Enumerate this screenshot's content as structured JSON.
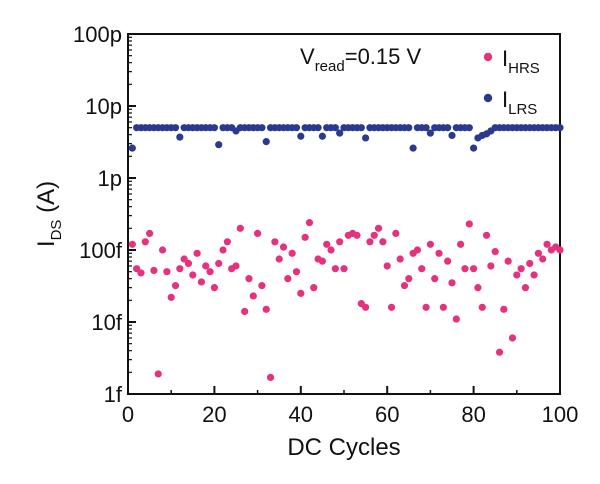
{
  "chart_data": {
    "type": "scatter",
    "xlabel": "DC Cycles",
    "ylabel_main": "I",
    "ylabel_sub": "DS",
    "ylabel_unit": " (A)",
    "xlim": [
      0,
      100
    ],
    "ylim": [
      1e-15,
      1e-10
    ],
    "yscale": "log",
    "grid": false,
    "legend_position": "top-right",
    "x_ticks": [
      0,
      20,
      40,
      60,
      80,
      100
    ],
    "y_ticks": [
      {
        "value": 1e-15,
        "label": "1f"
      },
      {
        "value": 1e-14,
        "label": "10f"
      },
      {
        "value": 1e-13,
        "label": "100f"
      },
      {
        "value": 1e-12,
        "label": "1p"
      },
      {
        "value": 1e-11,
        "label": "10p"
      },
      {
        "value": 1e-10,
        "label": "100p"
      }
    ],
    "annotation": {
      "prefix": "V",
      "sub": "read",
      "suffix": "=0.15 V"
    },
    "series": [
      {
        "name_main": "I",
        "name_sub": "HRS",
        "color": "#e5317e",
        "points": [
          [
            1,
            1.2e-13
          ],
          [
            2,
            5.5e-14
          ],
          [
            3,
            4.8e-14
          ],
          [
            4,
            1.3e-13
          ],
          [
            5,
            1.7e-13
          ],
          [
            6,
            5.2e-14
          ],
          [
            7,
            1.9e-15
          ],
          [
            8,
            1e-13
          ],
          [
            9,
            5e-14
          ],
          [
            10,
            2.2e-14
          ],
          [
            11,
            3.2e-14
          ],
          [
            12,
            5.5e-14
          ],
          [
            13,
            7.5e-14
          ],
          [
            14,
            6.5e-14
          ],
          [
            15,
            4.5e-14
          ],
          [
            16,
            9e-14
          ],
          [
            17,
            3.6e-14
          ],
          [
            18,
            6e-14
          ],
          [
            19,
            5e-14
          ],
          [
            20,
            3e-14
          ],
          [
            21,
            6.5e-14
          ],
          [
            22,
            1e-13
          ],
          [
            23,
            1.3e-13
          ],
          [
            24,
            5.5e-14
          ],
          [
            25,
            6e-14
          ],
          [
            26,
            2e-13
          ],
          [
            27,
            1.4e-14
          ],
          [
            28,
            4e-14
          ],
          [
            29,
            2.3e-14
          ],
          [
            30,
            1.7e-13
          ],
          [
            31,
            3.2e-14
          ],
          [
            32,
            1.5e-14
          ],
          [
            33,
            1.7e-15
          ],
          [
            34,
            1.3e-13
          ],
          [
            35,
            7.5e-14
          ],
          [
            36,
            1.1e-13
          ],
          [
            37,
            4e-14
          ],
          [
            38,
            9e-14
          ],
          [
            39,
            5e-14
          ],
          [
            40,
            2.5e-14
          ],
          [
            41,
            1.5e-13
          ],
          [
            42,
            2.4e-13
          ],
          [
            43,
            3e-14
          ],
          [
            44,
            7.5e-14
          ],
          [
            45,
            7e-14
          ],
          [
            46,
            1.2e-13
          ],
          [
            47,
            1e-13
          ],
          [
            48,
            5.5e-14
          ],
          [
            49,
            1.3e-13
          ],
          [
            50,
            5.5e-14
          ],
          [
            51,
            1.6e-13
          ],
          [
            52,
            1.7e-13
          ],
          [
            53,
            1.6e-13
          ],
          [
            54,
            1.8e-14
          ],
          [
            55,
            1.6e-14
          ],
          [
            56,
            1.3e-13
          ],
          [
            57,
            1.6e-13
          ],
          [
            58,
            2e-13
          ],
          [
            59,
            1.3e-13
          ],
          [
            60,
            6e-14
          ],
          [
            61,
            1.6e-14
          ],
          [
            62,
            1.7e-13
          ],
          [
            63,
            7.5e-14
          ],
          [
            64,
            3.2e-14
          ],
          [
            65,
            4e-14
          ],
          [
            66,
            9e-14
          ],
          [
            67,
            1e-13
          ],
          [
            68,
            5.5e-14
          ],
          [
            69,
            1.6e-14
          ],
          [
            70,
            1.2e-13
          ],
          [
            71,
            4e-14
          ],
          [
            72,
            9e-14
          ],
          [
            73,
            1.6e-14
          ],
          [
            74,
            7e-14
          ],
          [
            75,
            3.5e-14
          ],
          [
            76,
            1.1e-14
          ],
          [
            77,
            1.2e-13
          ],
          [
            78,
            5.5e-14
          ],
          [
            79,
            2.3e-13
          ],
          [
            80,
            5.5e-14
          ],
          [
            81,
            3e-14
          ],
          [
            82,
            1.6e-14
          ],
          [
            83,
            1.6e-13
          ],
          [
            84,
            6e-14
          ],
          [
            85,
            9.5e-14
          ],
          [
            86,
            3.8e-15
          ],
          [
            87,
            1.5e-14
          ],
          [
            88,
            7e-14
          ],
          [
            89,
            6e-15
          ],
          [
            90,
            4.5e-14
          ],
          [
            91,
            5.5e-14
          ],
          [
            92,
            3e-14
          ],
          [
            93,
            6.5e-14
          ],
          [
            94,
            4.5e-14
          ],
          [
            95,
            9e-14
          ],
          [
            96,
            7.5e-14
          ],
          [
            97,
            1.2e-13
          ],
          [
            98,
            1e-13
          ],
          [
            99,
            1.1e-13
          ],
          [
            100,
            1e-13
          ]
        ]
      },
      {
        "name_main": "I",
        "name_sub": "LRS",
        "color": "#2b3a8f",
        "points": [
          [
            1,
            2.6e-12
          ],
          [
            2,
            5e-12
          ],
          [
            3,
            5e-12
          ],
          [
            4,
            5e-12
          ],
          [
            5,
            5e-12
          ],
          [
            6,
            5e-12
          ],
          [
            7,
            5e-12
          ],
          [
            8,
            5e-12
          ],
          [
            9,
            5e-12
          ],
          [
            10,
            5e-12
          ],
          [
            11,
            5e-12
          ],
          [
            12,
            3.7e-12
          ],
          [
            13,
            5e-12
          ],
          [
            14,
            5e-12
          ],
          [
            15,
            5e-12
          ],
          [
            16,
            5e-12
          ],
          [
            17,
            5e-12
          ],
          [
            18,
            5e-12
          ],
          [
            19,
            5e-12
          ],
          [
            20,
            5e-12
          ],
          [
            21,
            2.9e-12
          ],
          [
            22,
            5e-12
          ],
          [
            23,
            5e-12
          ],
          [
            24,
            5e-12
          ],
          [
            25,
            4.5e-12
          ],
          [
            26,
            5e-12
          ],
          [
            27,
            5e-12
          ],
          [
            28,
            5e-12
          ],
          [
            29,
            5e-12
          ],
          [
            30,
            5e-12
          ],
          [
            31,
            5e-12
          ],
          [
            32,
            3.2e-12
          ],
          [
            33,
            5e-12
          ],
          [
            34,
            5e-12
          ],
          [
            35,
            5e-12
          ],
          [
            36,
            5e-12
          ],
          [
            37,
            5e-12
          ],
          [
            38,
            5e-12
          ],
          [
            39,
            5e-12
          ],
          [
            40,
            3.8e-12
          ],
          [
            41,
            5e-12
          ],
          [
            42,
            5e-12
          ],
          [
            43,
            5e-12
          ],
          [
            44,
            5e-12
          ],
          [
            45,
            3.8e-12
          ],
          [
            46,
            5e-12
          ],
          [
            47,
            5e-12
          ],
          [
            48,
            5e-12
          ],
          [
            49,
            4.2e-12
          ],
          [
            50,
            5e-12
          ],
          [
            51,
            5e-12
          ],
          [
            52,
            5e-12
          ],
          [
            53,
            5e-12
          ],
          [
            54,
            5e-12
          ],
          [
            55,
            3.6e-12
          ],
          [
            56,
            5e-12
          ],
          [
            57,
            5e-12
          ],
          [
            58,
            5e-12
          ],
          [
            59,
            5e-12
          ],
          [
            60,
            5e-12
          ],
          [
            61,
            5e-12
          ],
          [
            62,
            5e-12
          ],
          [
            63,
            5e-12
          ],
          [
            64,
            5e-12
          ],
          [
            65,
            5e-12
          ],
          [
            66,
            2.6e-12
          ],
          [
            67,
            5e-12
          ],
          [
            68,
            5e-12
          ],
          [
            69,
            5e-12
          ],
          [
            70,
            4.2e-12
          ],
          [
            71,
            5e-12
          ],
          [
            72,
            5e-12
          ],
          [
            73,
            5e-12
          ],
          [
            74,
            5e-12
          ],
          [
            75,
            3.9e-12
          ],
          [
            76,
            5e-12
          ],
          [
            77,
            5e-12
          ],
          [
            78,
            5e-12
          ],
          [
            79,
            5e-12
          ],
          [
            80,
            2.6e-12
          ],
          [
            81,
            3.6e-12
          ],
          [
            82,
            3.9e-12
          ],
          [
            83,
            4.1e-12
          ],
          [
            84,
            4.5e-12
          ],
          [
            85,
            5e-12
          ],
          [
            86,
            5e-12
          ],
          [
            87,
            5e-12
          ],
          [
            88,
            5e-12
          ],
          [
            89,
            5e-12
          ],
          [
            90,
            5e-12
          ],
          [
            91,
            5e-12
          ],
          [
            92,
            5e-12
          ],
          [
            93,
            5e-12
          ],
          [
            94,
            5e-12
          ],
          [
            95,
            5e-12
          ],
          [
            96,
            5e-12
          ],
          [
            97,
            5e-12
          ],
          [
            98,
            5e-12
          ],
          [
            99,
            5e-12
          ],
          [
            100,
            5e-12
          ]
        ]
      }
    ]
  }
}
